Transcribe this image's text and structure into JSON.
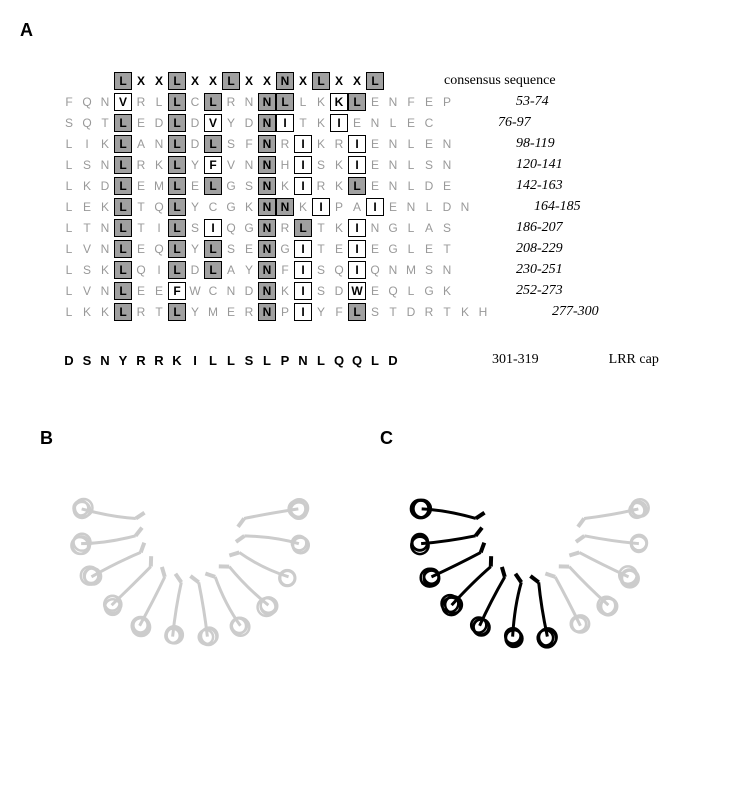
{
  "panelA": "A",
  "panelB": "B",
  "panelC": "C",
  "consensusLabel": "consensus sequence",
  "lrrCapLabel": "LRR cap",
  "capRange": "301-319",
  "colors": {
    "boxFillConserved": "#a0a0a0",
    "boxFillWhite": "#ffffff",
    "textFaded": "#999999",
    "textBlack": "#000000",
    "background": "#ffffff"
  },
  "alignment": {
    "consensus": [
      "L",
      "X",
      "X",
      "L",
      "X",
      "X",
      "L",
      "X",
      "X",
      "N",
      "X",
      "L",
      "X",
      "X",
      "L"
    ],
    "consensusBoxed": [
      0,
      3,
      6,
      9,
      11,
      14
    ],
    "rows": [
      {
        "pre": [
          "F",
          "Q",
          "N"
        ],
        "core": [
          "V",
          "R",
          "L",
          "L",
          "C",
          "L",
          "R",
          "N",
          "N",
          "L",
          "L",
          "K",
          "K",
          "L"
        ],
        "post": [
          "E",
          "N",
          "F",
          "E",
          "P"
        ],
        "range": "53-74",
        "boxIdx": [
          0,
          3,
          5,
          8,
          9,
          12,
          13
        ],
        "greyBox": [
          3,
          5,
          8,
          9,
          13
        ]
      },
      {
        "pre": [
          "S",
          "Q",
          "T"
        ],
        "core": [
          "L",
          "E",
          "D",
          "L",
          "D",
          "V",
          "Y",
          "D",
          "N",
          "I",
          "T",
          "K",
          "I"
        ],
        "post": [
          "E",
          "N",
          "L",
          "E",
          "C"
        ],
        "range": "76-97",
        "boxIdx": [
          0,
          3,
          5,
          8,
          9,
          12
        ],
        "greyBox": [
          0,
          3,
          8
        ]
      },
      {
        "pre": [
          "L",
          "I",
          "K"
        ],
        "core": [
          "L",
          "A",
          "N",
          "L",
          "D",
          "L",
          "S",
          "F",
          "N",
          "R",
          "I",
          "K",
          "R",
          "I"
        ],
        "post": [
          "E",
          "N",
          "L",
          "E",
          "N"
        ],
        "range": "98-119",
        "boxIdx": [
          0,
          3,
          5,
          8,
          10,
          13
        ],
        "greyBox": [
          0,
          3,
          5,
          8
        ]
      },
      {
        "pre": [
          "L",
          "S",
          "N"
        ],
        "core": [
          "L",
          "R",
          "K",
          "L",
          "Y",
          "F",
          "V",
          "N",
          "N",
          "H",
          "I",
          "S",
          "K",
          "I"
        ],
        "post": [
          "E",
          "N",
          "L",
          "S",
          "N"
        ],
        "range": "120-141",
        "boxIdx": [
          0,
          3,
          5,
          8,
          10,
          13
        ],
        "greyBox": [
          0,
          3,
          8
        ]
      },
      {
        "pre": [
          "L",
          "K",
          "D"
        ],
        "core": [
          "L",
          "E",
          "M",
          "L",
          "E",
          "L",
          "G",
          "S",
          "N",
          "K",
          "I",
          "R",
          "K",
          "L"
        ],
        "post": [
          "E",
          "N",
          "L",
          "D",
          "E"
        ],
        "range": "142-163",
        "boxIdx": [
          0,
          3,
          5,
          8,
          10,
          13
        ],
        "greyBox": [
          0,
          3,
          5,
          8,
          13
        ]
      },
      {
        "pre": [
          "L",
          "E",
          "K"
        ],
        "core": [
          "L",
          "T",
          "Q",
          "L",
          "Y",
          "C",
          "G",
          "K",
          "N",
          "N",
          "K",
          "I",
          "P",
          "A",
          "I"
        ],
        "post": [
          "E",
          "N",
          "L",
          "D",
          "N"
        ],
        "range": "164-185",
        "boxIdx": [
          0,
          3,
          8,
          9,
          11,
          14
        ],
        "greyBox": [
          0,
          3,
          8,
          9
        ]
      },
      {
        "pre": [
          "L",
          "T",
          "N"
        ],
        "core": [
          "L",
          "T",
          "I",
          "L",
          "S",
          "I",
          "Q",
          "G",
          "N",
          "R",
          "L",
          "T",
          "K",
          "I"
        ],
        "post": [
          "N",
          "G",
          "L",
          "A",
          "S"
        ],
        "range": "186-207",
        "boxIdx": [
          0,
          3,
          5,
          8,
          10,
          13
        ],
        "greyBox": [
          0,
          3,
          8,
          10
        ]
      },
      {
        "pre": [
          "L",
          "V",
          "N"
        ],
        "core": [
          "L",
          "E",
          "Q",
          "L",
          "Y",
          "L",
          "S",
          "E",
          "N",
          "G",
          "I",
          "T",
          "E",
          "I"
        ],
        "post": [
          "E",
          "G",
          "L",
          "E",
          "T"
        ],
        "range": "208-229",
        "boxIdx": [
          0,
          3,
          5,
          8,
          10,
          13
        ],
        "greyBox": [
          0,
          3,
          5,
          8
        ]
      },
      {
        "pre": [
          "L",
          "S",
          "K"
        ],
        "core": [
          "L",
          "Q",
          "I",
          "L",
          "D",
          "L",
          "A",
          "Y",
          "N",
          "F",
          "I",
          "S",
          "Q",
          "I"
        ],
        "post": [
          "Q",
          "N",
          "M",
          "S",
          "N"
        ],
        "range": "230-251",
        "boxIdx": [
          0,
          3,
          5,
          8,
          10,
          13
        ],
        "greyBox": [
          0,
          3,
          5,
          8
        ]
      },
      {
        "pre": [
          "L",
          "V",
          "N"
        ],
        "core": [
          "L",
          "E",
          "E",
          "F",
          "W",
          "C",
          "N",
          "D",
          "N",
          "K",
          "I",
          "S",
          "D",
          "W"
        ],
        "post": [
          "E",
          "Q",
          "L",
          "G",
          "K"
        ],
        "range": "252-273",
        "boxIdx": [
          0,
          3,
          8,
          10,
          13
        ],
        "greyBox": [
          0,
          8
        ]
      },
      {
        "pre": [
          "L",
          "K",
          "K"
        ],
        "core": [
          "L",
          "R",
          "T",
          "L",
          "Y",
          "M",
          "E",
          "R",
          "N",
          "P",
          "I",
          "Y",
          "F",
          "L"
        ],
        "post": [
          "S",
          "T",
          "D",
          "R",
          "T",
          "K",
          "H"
        ],
        "range": "277-300",
        "boxIdx": [
          0,
          3,
          8,
          10,
          13
        ],
        "greyBox": [
          0,
          3,
          8,
          13
        ]
      }
    ]
  },
  "capSequence": [
    "D",
    "S",
    "N",
    "Y",
    "R",
    "R",
    "K",
    "I",
    "L",
    "L",
    "S",
    "L",
    "P",
    "N",
    "L",
    "Q",
    "Q",
    "L",
    "D"
  ],
  "structure": {
    "type": "protein-cartoon",
    "repeats": 12,
    "arcRadius": 110,
    "arcSpanDeg": 200,
    "colorB": "#cccccc",
    "colorC_dark": "#000000",
    "colorC_light": "#cccccc",
    "darkFraction": 0.58
  }
}
